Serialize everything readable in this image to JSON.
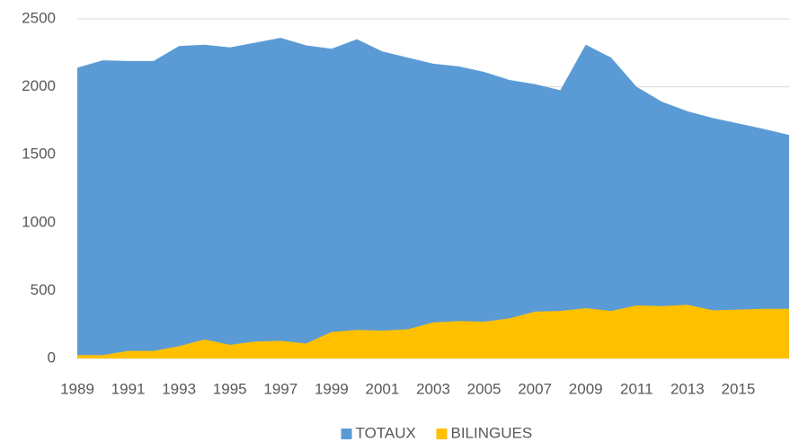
{
  "chart_data": {
    "type": "area",
    "x": [
      1989,
      1990,
      1991,
      1992,
      1993,
      1994,
      1995,
      1996,
      1997,
      1998,
      1999,
      2000,
      2001,
      2002,
      2003,
      2004,
      2005,
      2006,
      2007,
      2008,
      2009,
      2010,
      2011,
      2012,
      2013,
      2014,
      2015,
      2016,
      2017
    ],
    "xlim": [
      1989,
      2017
    ],
    "xticks": [
      1989,
      1991,
      1993,
      1995,
      1997,
      1999,
      2001,
      2003,
      2005,
      2007,
      2009,
      2011,
      2013,
      2015
    ],
    "ylim": [
      0,
      2500
    ],
    "yticks": [
      0,
      500,
      1000,
      1500,
      2000,
      2500
    ],
    "grid": true,
    "legend": "bottom",
    "series": [
      {
        "name": "TOTAUX",
        "color": "#5b9bd5",
        "values": [
          2140,
          2195,
          2190,
          2190,
          2300,
          2310,
          2290,
          2325,
          2360,
          2305,
          2280,
          2350,
          2260,
          2215,
          2170,
          2150,
          2110,
          2050,
          2020,
          1975,
          2310,
          2215,
          2000,
          1890,
          1820,
          1770,
          1730,
          1690,
          1645
        ]
      },
      {
        "name": "BILINGUES",
        "color": "#ffc000",
        "values": [
          25,
          25,
          55,
          55,
          90,
          140,
          100,
          125,
          130,
          110,
          195,
          210,
          205,
          215,
          265,
          275,
          270,
          295,
          345,
          350,
          370,
          350,
          390,
          385,
          395,
          355,
          360,
          365,
          365
        ]
      }
    ]
  }
}
